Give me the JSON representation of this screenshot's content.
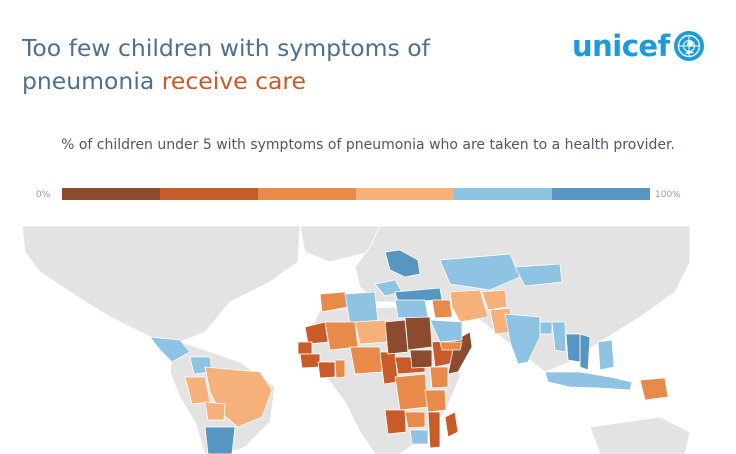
{
  "header": {
    "title_part1": "Too few children with symptoms of pneumonia ",
    "title_part2": "receive care",
    "subtitle": "% of children under 5 with symptoms of pneumonia who are taken to a health provider."
  },
  "logo": {
    "text": "unicef"
  },
  "legend": {
    "min_label": "0%",
    "max_label": "100%",
    "colors": [
      "#8c4a2f",
      "#c75b2a",
      "#e88a4a",
      "#f6b07a",
      "#8fc3e3",
      "#5796c0"
    ]
  },
  "map": {
    "no_data_color": "#e3e3e3",
    "countries": [
      {
        "name": "russia-north",
        "band": 6
      },
      {
        "name": "ukraine",
        "band": 5
      },
      {
        "name": "kazakhstan",
        "band": 5
      },
      {
        "name": "mongolia",
        "band": 5
      },
      {
        "name": "turkey",
        "band": 6
      },
      {
        "name": "iran",
        "band": 4
      },
      {
        "name": "afghanistan",
        "band": 4
      },
      {
        "name": "pakistan",
        "band": 4
      },
      {
        "name": "india",
        "band": 5
      },
      {
        "name": "bangladesh",
        "band": 5
      },
      {
        "name": "myanmar",
        "band": 5
      },
      {
        "name": "thailand",
        "band": 6
      },
      {
        "name": "vietnam",
        "band": 6
      },
      {
        "name": "philippines",
        "band": 5
      },
      {
        "name": "indonesia",
        "band": 5
      },
      {
        "name": "papua-new-guinea",
        "band": 3
      },
      {
        "name": "mexico-central",
        "band": 5
      },
      {
        "name": "colombia",
        "band": 5
      },
      {
        "name": "peru",
        "band": 4
      },
      {
        "name": "brazil",
        "band": 4
      },
      {
        "name": "bolivia",
        "band": 4
      },
      {
        "name": "argentina",
        "band": 6
      },
      {
        "name": "morocco",
        "band": 3
      },
      {
        "name": "algeria",
        "band": 5
      },
      {
        "name": "mali",
        "band": 3
      },
      {
        "name": "mauritania",
        "band": 2
      },
      {
        "name": "senegal",
        "band": 2
      },
      {
        "name": "guinea",
        "band": 2
      },
      {
        "name": "ivory-coast",
        "band": 2
      },
      {
        "name": "ghana",
        "band": 3
      },
      {
        "name": "nigeria",
        "band": 3
      },
      {
        "name": "niger",
        "band": 4
      },
      {
        "name": "chad",
        "band": 1
      },
      {
        "name": "sudan",
        "band": 1
      },
      {
        "name": "egypt",
        "band": 5
      },
      {
        "name": "ethiopia",
        "band": 2
      },
      {
        "name": "somalia",
        "band": 1
      },
      {
        "name": "kenya",
        "band": 3
      },
      {
        "name": "cameroon",
        "band": 2
      },
      {
        "name": "car",
        "band": 2
      },
      {
        "name": "drc",
        "band": 3
      },
      {
        "name": "south-sudan",
        "band": 1
      },
      {
        "name": "tanzania",
        "band": 3
      },
      {
        "name": "zambia",
        "band": 3
      },
      {
        "name": "angola",
        "band": 2
      },
      {
        "name": "mozambique",
        "band": 2
      },
      {
        "name": "madagascar",
        "band": 2
      },
      {
        "name": "zimbabwe",
        "band": 5
      },
      {
        "name": "iraq",
        "band": 3
      },
      {
        "name": "saudi-arabia",
        "band": 5
      },
      {
        "name": "yemen",
        "band": 3
      }
    ]
  }
}
